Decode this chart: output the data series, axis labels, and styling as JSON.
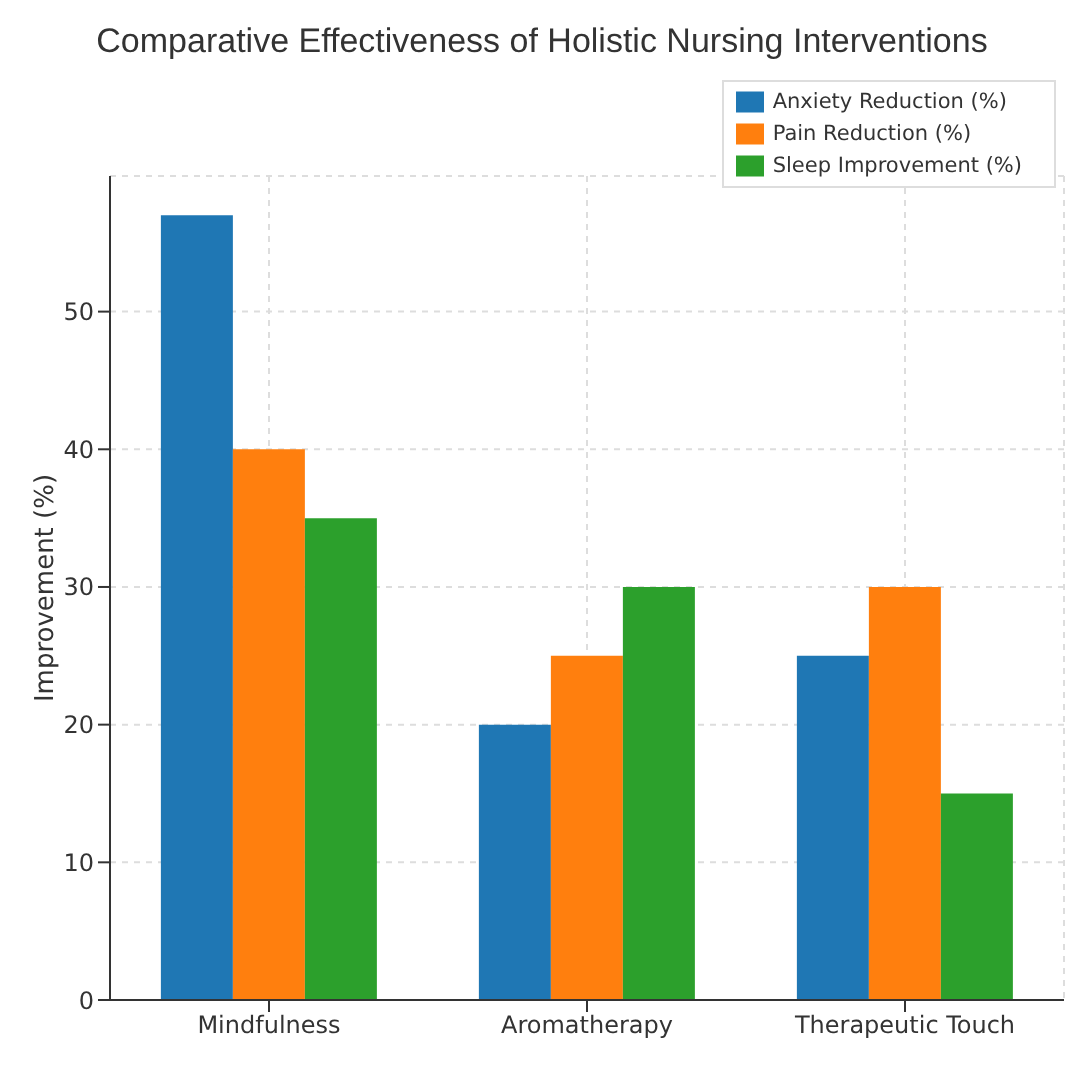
{
  "chart_data": {
    "type": "bar",
    "title": "Comparative Effectiveness of Holistic Nursing Interventions",
    "ylabel": "Improvement (%)",
    "categories": [
      "Mindfulness",
      "Aromatherapy",
      "Therapeutic Touch"
    ],
    "series": [
      {
        "name": "Anxiety Reduction (%)",
        "color": "#1f77b4",
        "values": [
          57,
          20,
          25
        ]
      },
      {
        "name": "Pain Reduction (%)",
        "color": "#ff7f0e",
        "values": [
          40,
          25,
          30
        ]
      },
      {
        "name": "Sleep Improvement (%)",
        "color": "#2ca02c",
        "values": [
          35,
          30,
          15
        ]
      }
    ],
    "ylim": [
      0,
      59.85
    ],
    "yticks": [
      0,
      10,
      20,
      30,
      40,
      50
    ],
    "grid": true,
    "legend": "top right"
  }
}
